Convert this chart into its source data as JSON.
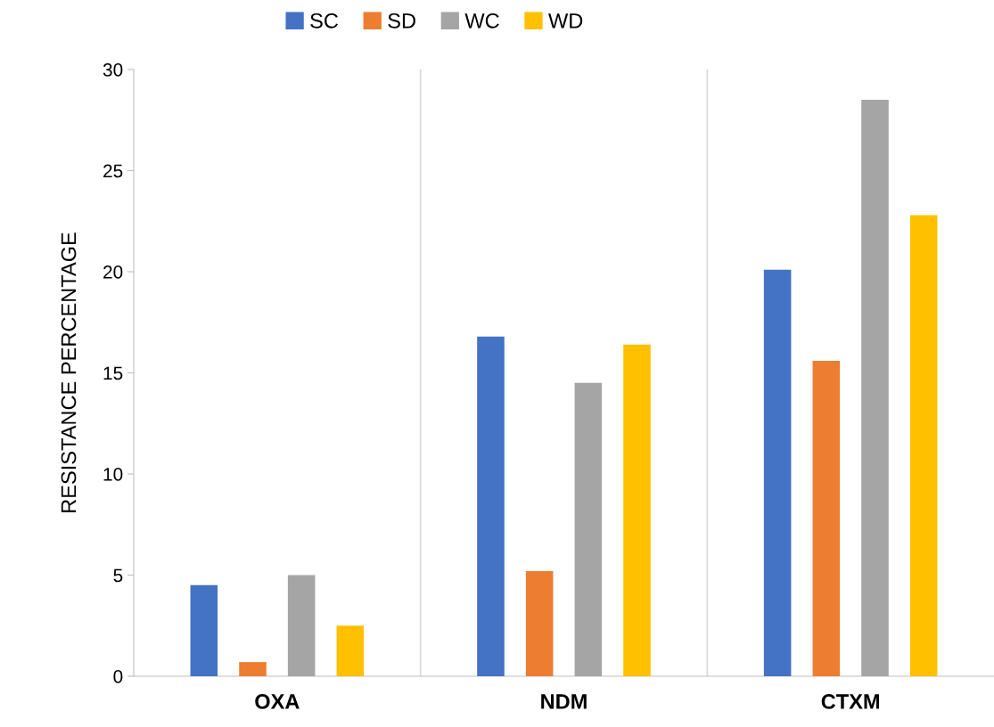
{
  "chart_data": {
    "type": "bar",
    "ylabel": "RESISTANCE PERCENTAGE",
    "categories": [
      "OXA",
      "NDM",
      "CTXM"
    ],
    "series": [
      {
        "name": "SC",
        "color": "#4472c4",
        "values": [
          4.5,
          16.8,
          20.1
        ]
      },
      {
        "name": "SD",
        "color": "#ed7d31",
        "values": [
          0.7,
          5.2,
          15.6
        ]
      },
      {
        "name": "WC",
        "color": "#a5a5a5",
        "values": [
          5.0,
          14.5,
          28.5
        ]
      },
      {
        "name": "WD",
        "color": "#ffc000",
        "values": [
          2.5,
          16.4,
          22.8
        ]
      }
    ],
    "ylim": [
      0,
      30
    ],
    "yticks": [
      0,
      5,
      10,
      15,
      20,
      25,
      30
    ],
    "grid": "x",
    "legend": "top"
  }
}
